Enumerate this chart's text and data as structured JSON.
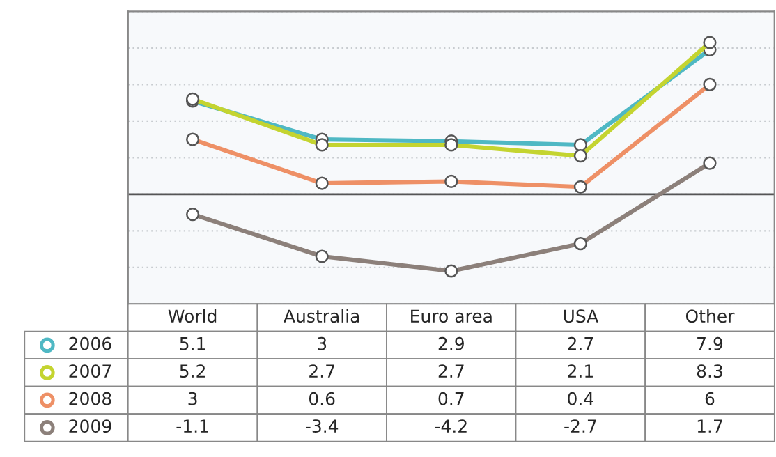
{
  "chart_data": {
    "type": "line",
    "categories": [
      "World",
      "Australia",
      "Euro area",
      "USA",
      "Other"
    ],
    "series": [
      {
        "name": "2006",
        "color": "#4fb8c4",
        "values": [
          5.1,
          3,
          2.9,
          2.7,
          7.9
        ]
      },
      {
        "name": "2007",
        "color": "#c4d430",
        "values": [
          5.2,
          2.7,
          2.7,
          2.1,
          8.3
        ]
      },
      {
        "name": "2008",
        "color": "#ee9066",
        "values": [
          3,
          0.6,
          0.7,
          0.4,
          6
        ]
      },
      {
        "name": "2009",
        "color": "#8c807a",
        "values": [
          -1.1,
          -3.4,
          -4.2,
          -2.7,
          1.7
        ]
      }
    ],
    "ylim": [
      -6,
      10
    ],
    "yticks": [
      {
        "value": -6,
        "label": null
      },
      {
        "value": -4,
        "label": null
      },
      {
        "value": -2,
        "label": null
      },
      {
        "value": 0,
        "label": null
      },
      {
        "value": 2,
        "label": null
      },
      {
        "value": 4,
        "label": null
      },
      {
        "value": 6,
        "label": null
      },
      {
        "value": 8,
        "label": null
      },
      {
        "value": 10,
        "label": null
      }
    ],
    "tick_labels": false,
    "grid": "y",
    "marker": "circle",
    "line_style": "solid",
    "data_labels": true,
    "legend": "bottom left",
    "ref_lines": [
      {
        "axis": "y",
        "value": 0,
        "color": "#555555"
      }
    ]
  }
}
